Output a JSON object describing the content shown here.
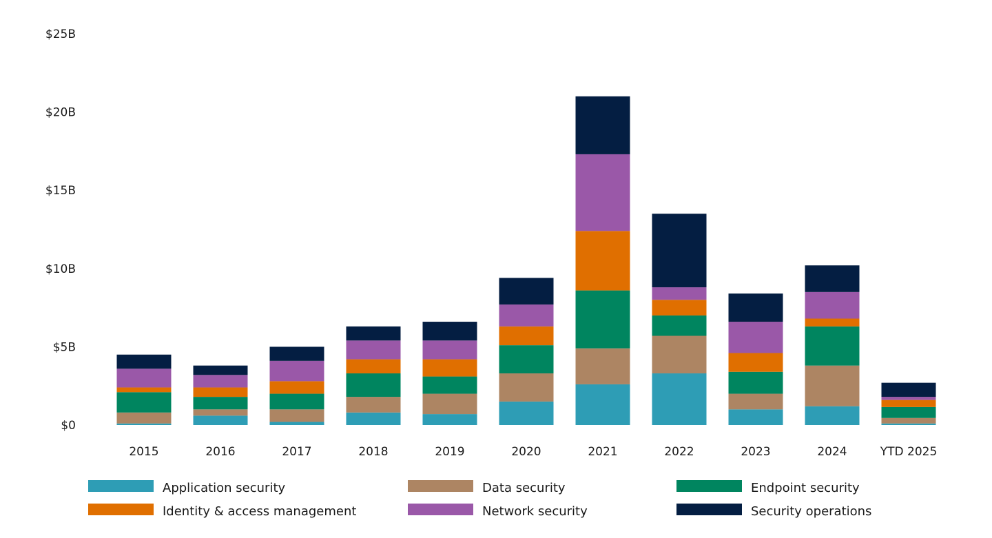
{
  "chart_data": {
    "type": "bar",
    "stacked": true,
    "title": "",
    "xlabel": "",
    "ylabel": "",
    "ylim": [
      0,
      25
    ],
    "y_ticks": [
      0,
      5,
      10,
      15,
      20,
      25
    ],
    "y_tick_labels": [
      "$0",
      "$5B",
      "$10B",
      "$15B",
      "$20B",
      "$25B"
    ],
    "grid": false,
    "legend_position": "bottom",
    "categories": [
      "2015",
      "2016",
      "2017",
      "2018",
      "2019",
      "2020",
      "2021",
      "2022",
      "2023",
      "2024",
      "YTD 2025"
    ],
    "series": [
      {
        "name": "Application security",
        "color": "#2e9db5",
        "values": [
          0.1,
          0.6,
          0.2,
          0.8,
          0.7,
          1.5,
          2.6,
          3.3,
          1.0,
          1.2,
          0.1
        ]
      },
      {
        "name": "Data security",
        "color": "#ad8563",
        "values": [
          0.7,
          0.4,
          0.8,
          1.0,
          1.3,
          1.8,
          2.3,
          2.4,
          1.0,
          2.6,
          0.35
        ]
      },
      {
        "name": "Endpoint security",
        "color": "#00855f",
        "values": [
          1.3,
          0.8,
          1.0,
          1.5,
          1.1,
          1.8,
          3.7,
          1.3,
          1.4,
          2.5,
          0.7
        ]
      },
      {
        "name": "Identity & access management",
        "color": "#e06f00",
        "values": [
          0.3,
          0.6,
          0.8,
          0.9,
          1.1,
          1.2,
          3.8,
          1.0,
          1.2,
          0.5,
          0.45
        ]
      },
      {
        "name": "Network security",
        "color": "#9a58a8",
        "values": [
          1.2,
          0.8,
          1.3,
          1.2,
          1.2,
          1.4,
          4.9,
          0.8,
          2.0,
          1.7,
          0.2
        ]
      },
      {
        "name": "Security operations",
        "color": "#041e42",
        "values": [
          0.9,
          0.6,
          0.9,
          0.9,
          1.2,
          1.7,
          3.7,
          4.7,
          1.8,
          1.7,
          0.9
        ]
      }
    ]
  }
}
